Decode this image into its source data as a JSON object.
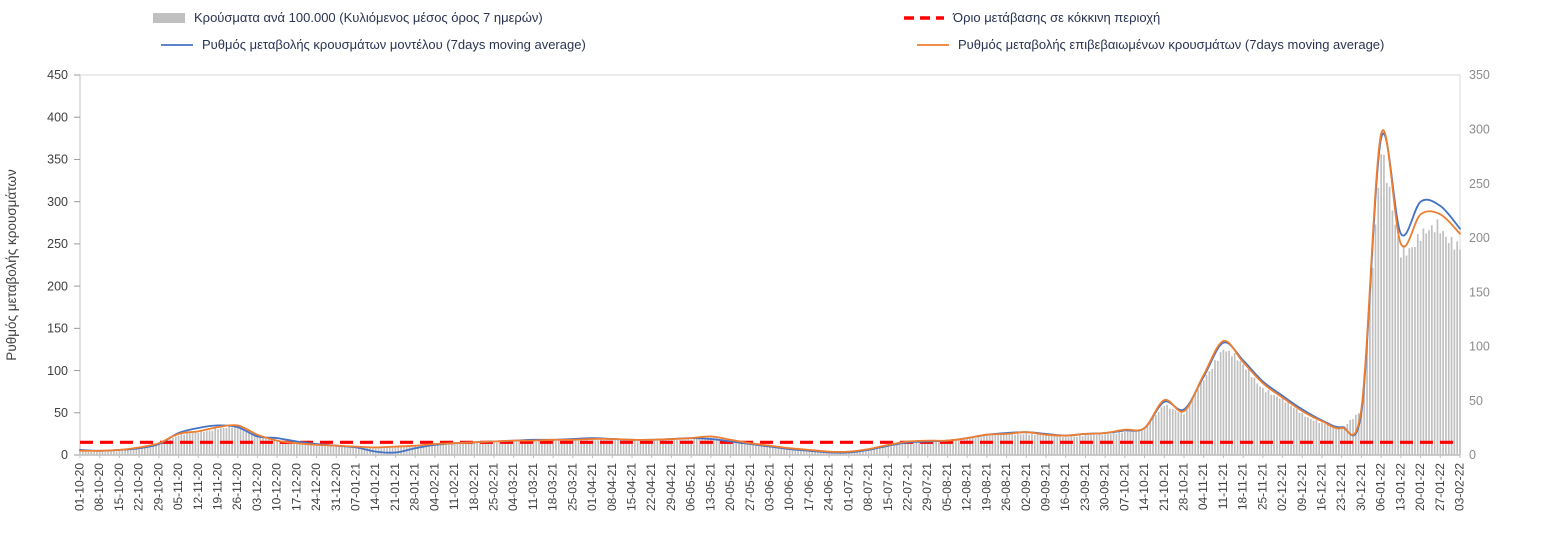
{
  "chart_data": {
    "type": "bar+line",
    "title": "",
    "grid": false,
    "legend_position": "top",
    "left_axis": {
      "label": "Ρυθμός μεταβολής κρουσμάτων",
      "min": 0,
      "max": 450,
      "step": 50
    },
    "right_axis": {
      "label": "",
      "min": 0,
      "max": 350,
      "step": 50
    },
    "x_labels": [
      "01-10-20",
      "08-10-20",
      "15-10-20",
      "22-10-20",
      "29-10-20",
      "05-11-20",
      "12-11-20",
      "19-11-20",
      "26-11-20",
      "03-12-20",
      "10-12-20",
      "17-12-20",
      "24-12-20",
      "31-12-20",
      "07-01-21",
      "14-01-21",
      "21-01-21",
      "28-01-21",
      "04-02-21",
      "11-02-21",
      "18-02-21",
      "25-02-21",
      "04-03-21",
      "11-03-21",
      "18-03-21",
      "25-03-21",
      "01-04-21",
      "08-04-21",
      "15-04-21",
      "22-04-21",
      "29-04-21",
      "06-05-21",
      "13-05-21",
      "20-05-21",
      "27-05-21",
      "03-06-21",
      "10-06-21",
      "17-06-21",
      "24-06-21",
      "01-07-21",
      "08-07-21",
      "15-07-21",
      "22-07-21",
      "29-07-21",
      "05-08-21",
      "12-08-21",
      "19-08-21",
      "26-08-21",
      "02-09-21",
      "09-09-21",
      "16-09-21",
      "23-09-21",
      "30-09-21",
      "07-10-21",
      "14-10-21",
      "21-10-21",
      "28-10-21",
      "04-11-21",
      "11-11-21",
      "18-11-21",
      "25-11-21",
      "02-12-21",
      "09-12-21",
      "16-12-21",
      "23-12-21",
      "30-12-21",
      "06-01-22",
      "13-01-22",
      "20-01-22",
      "27-01-22",
      "03-02-22"
    ],
    "series": [
      {
        "name": "Κρούσματα ανά 100.000 (Κυλιόμενος μέσος όρος 7 ημερών)",
        "type": "bar",
        "axis": "right",
        "color": "#c0c0c0",
        "values": [
          3,
          3,
          4,
          6,
          11,
          19,
          22,
          26,
          27,
          19,
          13,
          11,
          9,
          8,
          8,
          7,
          8,
          9,
          10,
          11,
          12,
          12,
          13,
          13,
          14,
          14,
          15,
          15,
          14,
          14,
          15,
          16,
          17,
          14,
          11,
          8,
          6,
          5,
          3,
          3,
          5,
          9,
          12,
          13,
          13,
          16,
          19,
          20,
          21,
          19,
          18,
          19,
          20,
          23,
          25,
          50,
          40,
          74,
          105,
          86,
          66,
          53,
          40,
          31,
          25,
          45,
          290,
          200,
          212,
          218,
          207
        ]
      },
      {
        "name": "Όριο μετάβασης σε κόκκινη περιοχή",
        "type": "threshold-line",
        "axis": "left",
        "color": "#FF0000",
        "style": "dashed",
        "value": 15
      },
      {
        "name": "Ρυθμός μεταβολής κρουσμάτων μοντέλου (7days moving average)",
        "type": "line",
        "axis": "left",
        "color": "#4472C4",
        "values": [
          6,
          5,
          6,
          8,
          13,
          26,
          32,
          35,
          33,
          22,
          20,
          16,
          13,
          11,
          9,
          4,
          3,
          8,
          12,
          14,
          15,
          16,
          17,
          18,
          18,
          19,
          20,
          19,
          18,
          18,
          19,
          20,
          19,
          16,
          13,
          10,
          7,
          5,
          3,
          3,
          6,
          11,
          15,
          16,
          17,
          20,
          24,
          26,
          27,
          25,
          23,
          25,
          26,
          29,
          32,
          63,
          54,
          93,
          133,
          112,
          87,
          70,
          54,
          41,
          33,
          50,
          375,
          262,
          300,
          295,
          268
        ]
      },
      {
        "name": "Ρυθμός μεταβολής επιβεβαιωμένων κρουσμάτων (7days moving average)",
        "type": "line",
        "axis": "left",
        "color": "#ED7D31",
        "values": [
          5,
          5,
          6,
          9,
          14,
          25,
          28,
          33,
          35,
          24,
          17,
          14,
          12,
          11,
          10,
          9,
          10,
          11,
          13,
          14,
          15,
          16,
          17,
          17,
          18,
          18,
          19,
          19,
          18,
          18,
          19,
          20,
          22,
          18,
          14,
          11,
          8,
          6,
          4,
          4,
          7,
          12,
          16,
          17,
          17,
          20,
          24,
          25,
          27,
          24,
          23,
          25,
          26,
          30,
          32,
          65,
          52,
          95,
          135,
          110,
          85,
          68,
          52,
          40,
          32,
          55,
          380,
          250,
          285,
          285,
          262
        ]
      }
    ]
  }
}
